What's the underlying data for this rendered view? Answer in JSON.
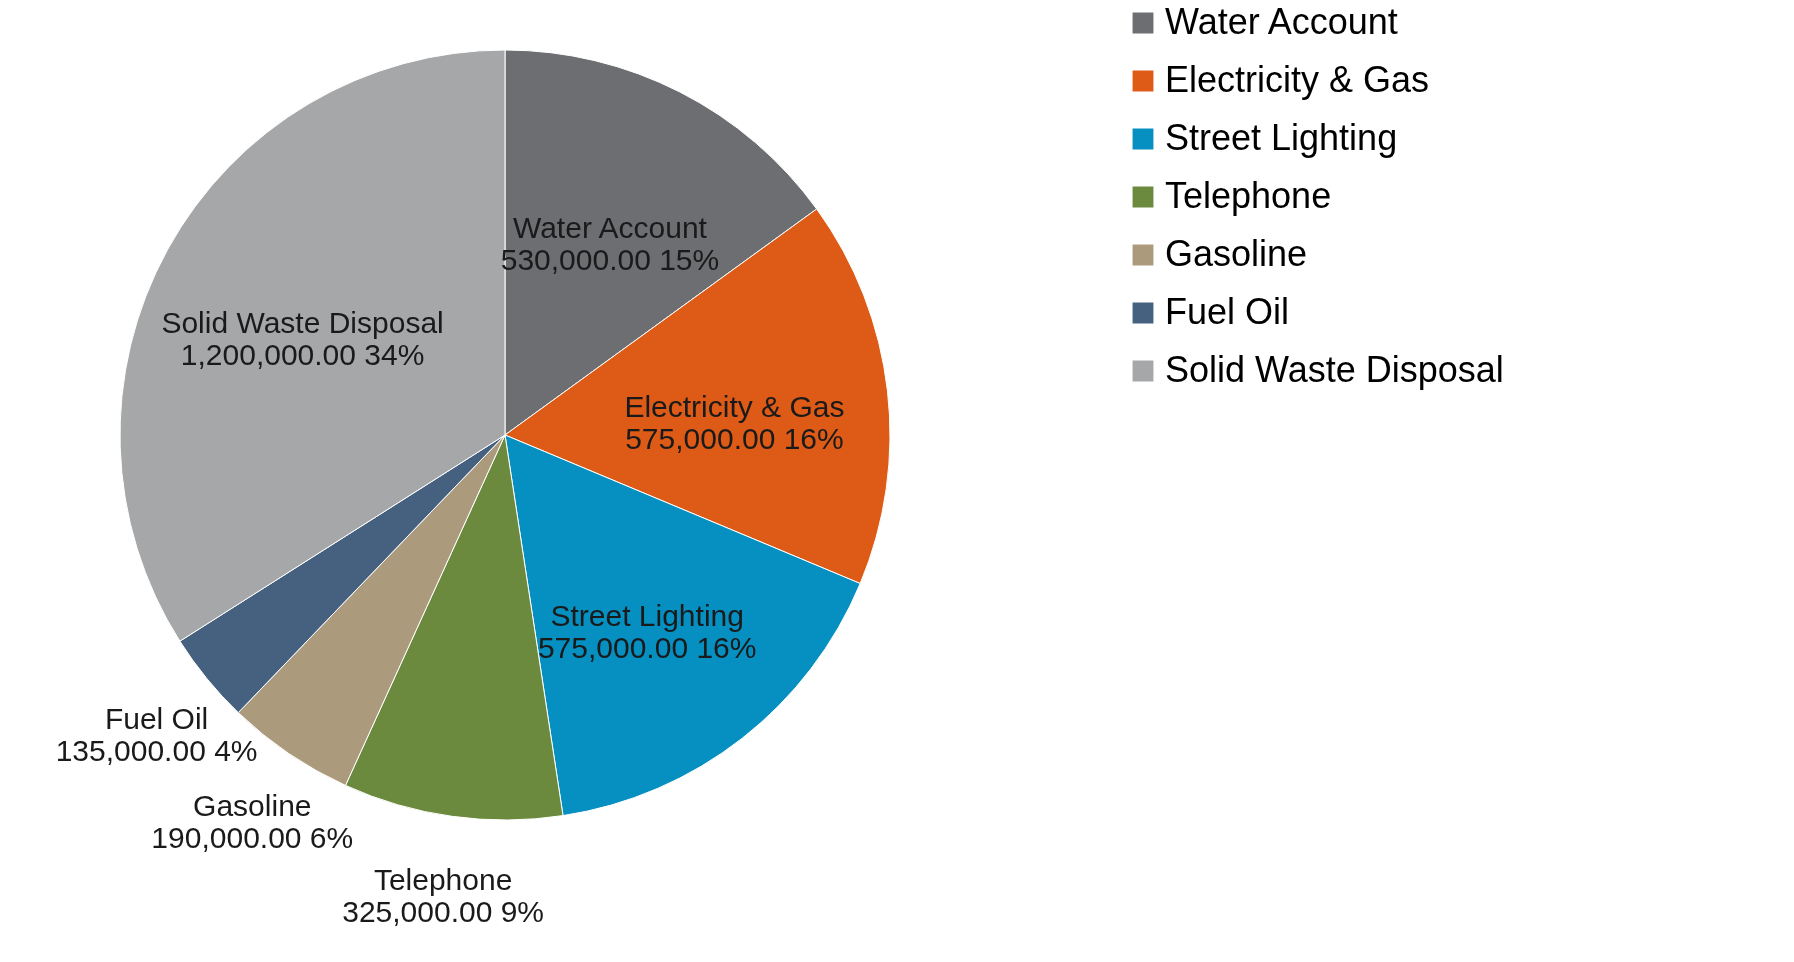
{
  "chart_data": {
    "type": "pie",
    "categories": [
      "Water Account",
      "Electricity & Gas",
      "Street Lighting",
      "Telephone",
      "Gasoline",
      "Fuel Oil",
      "Solid Waste Disposal"
    ],
    "values": [
      530000,
      575000,
      575000,
      325000,
      190000,
      135000,
      1200000
    ],
    "colors": [
      "#6d6e71",
      "#de5b17",
      "#068fc1",
      "#6c8a3e",
      "#ac9a7c",
      "#46607f",
      "#a6a7a9"
    ],
    "value_labels": [
      "530,000.00  15%",
      "575,000.00  16%",
      "575,000.00  16%",
      "325,000.00  9%",
      "190,000.00  6%",
      "135,000.00  4%",
      "1,200,000.00  34%"
    ],
    "legend": "right"
  }
}
